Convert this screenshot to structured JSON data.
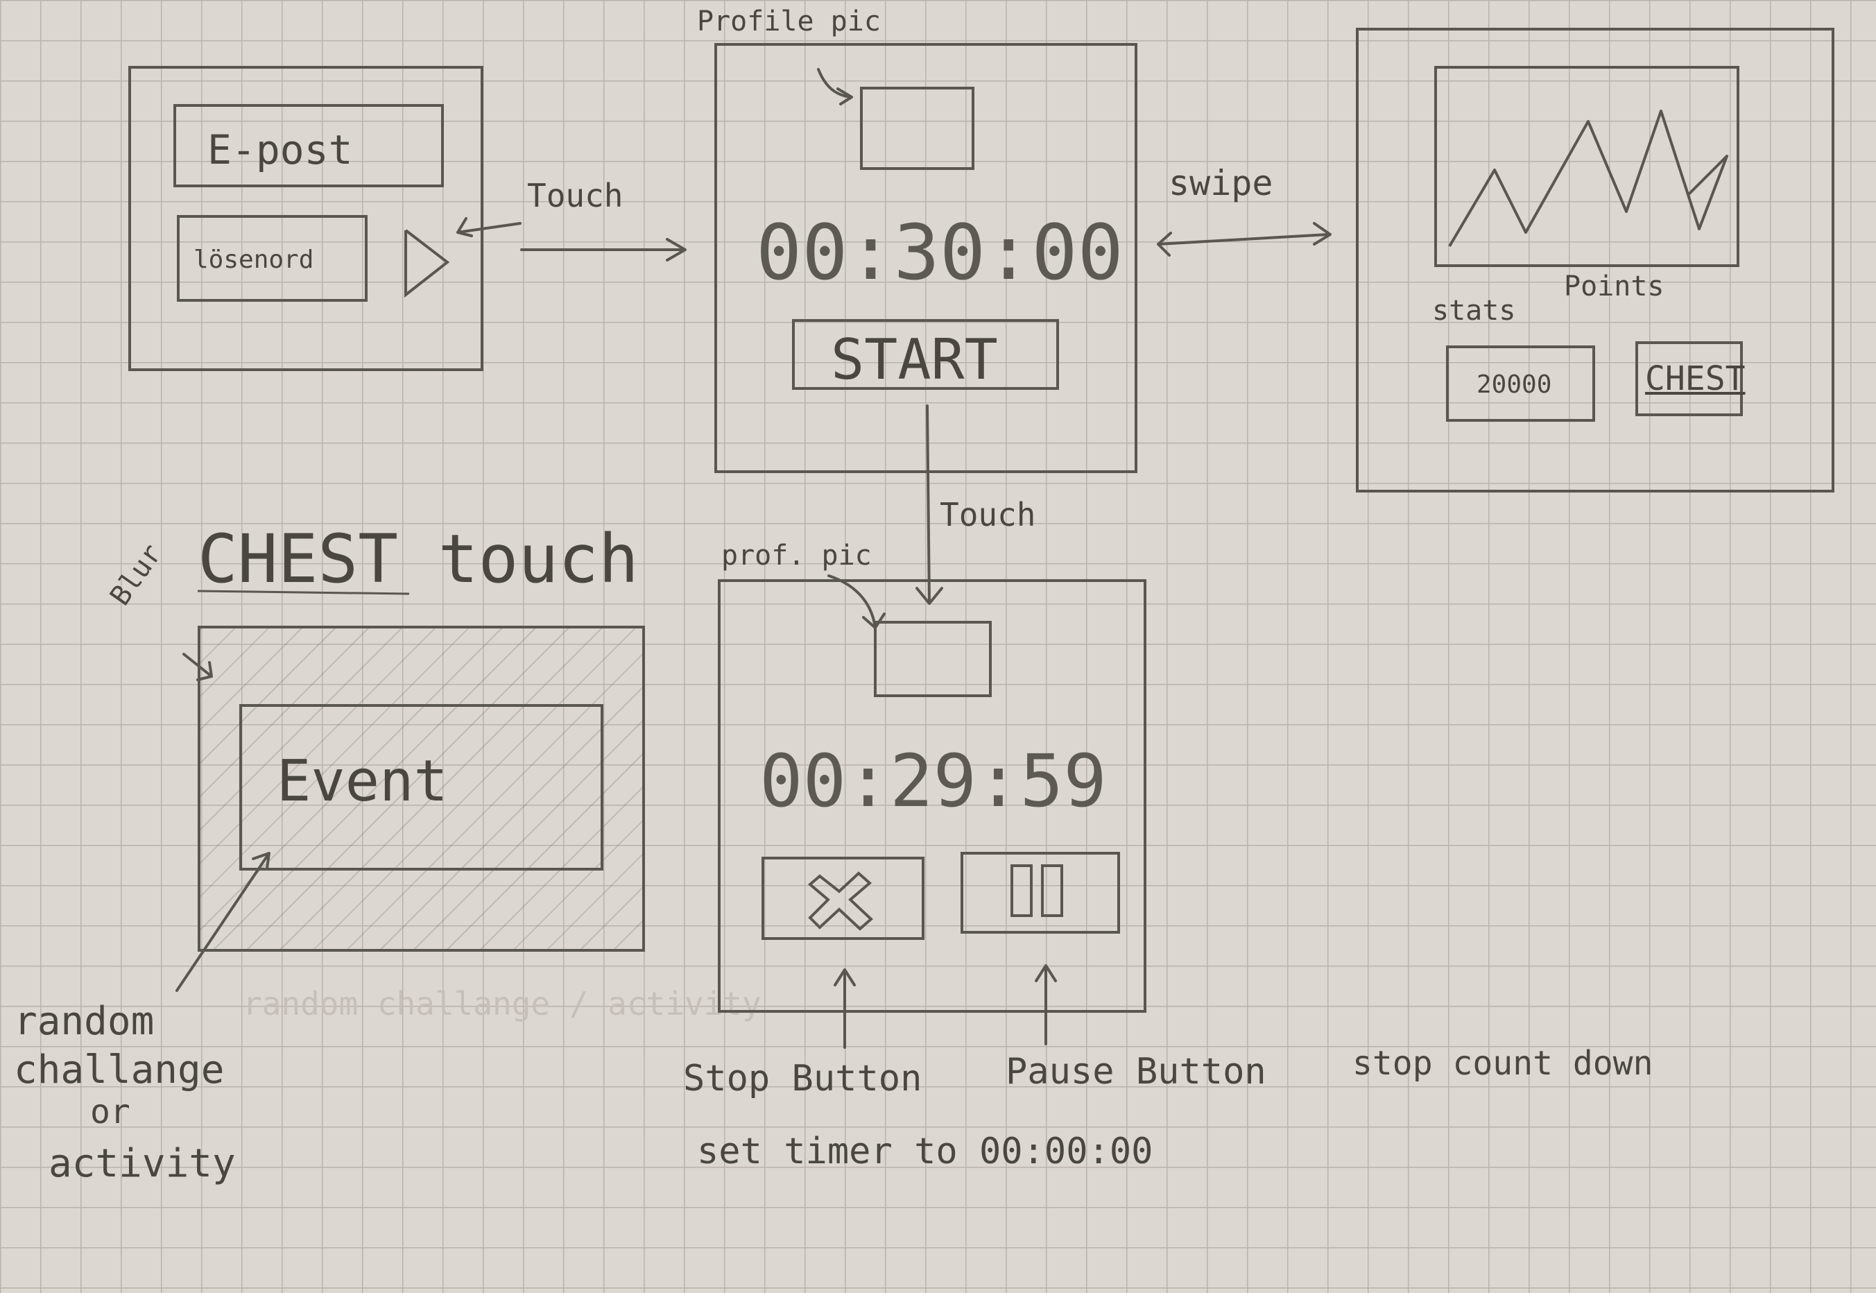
{
  "login": {
    "email_placeholder": "E-post",
    "password_placeholder": "lösenord"
  },
  "timer_screen": {
    "profile_pic_label": "Profile pic",
    "time": "00:30:00",
    "start_label": "START"
  },
  "stats_screen": {
    "stats_label": "stats",
    "points_label": "Points",
    "points_value": "20000",
    "chest_label": "CHEST"
  },
  "chest_screen": {
    "heading": "CHEST touch",
    "blur_label": "Blur",
    "event_label": "Event",
    "random_note": [
      "random",
      "challange",
      "or",
      "activity"
    ],
    "faint_note": "random challange / activity"
  },
  "running_screen": {
    "profile_pic_label": "prof. pic",
    "time": "00:29:59",
    "stop_icon": "x-icon",
    "pause_icon": "pause-icon",
    "stop_caption": "Stop Button",
    "pause_caption": "Pause Button",
    "pause_note": "stop count down",
    "stop_note": "set timer to 00:00:00"
  },
  "arrows": {
    "touch_1": "Touch",
    "swipe": "swipe",
    "touch_2": "Touch"
  }
}
